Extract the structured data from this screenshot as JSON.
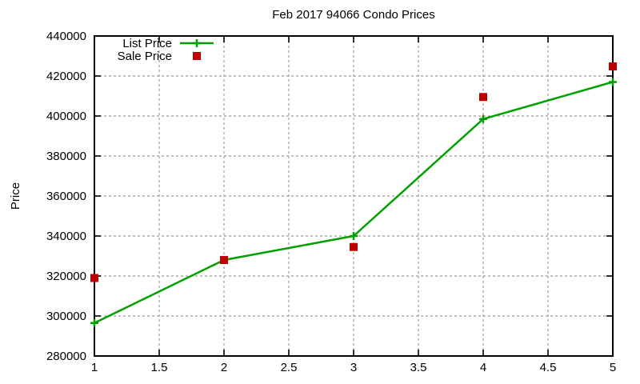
{
  "window": {
    "background": "#ffffff"
  },
  "chart_data": {
    "type": "line",
    "title": "Feb 2017 94066 Condo Prices",
    "xlabel": "",
    "ylabel": "Price",
    "x": [
      1,
      2,
      3,
      4,
      5
    ],
    "series": [
      {
        "name": "List Price",
        "style": "line-with-plus-markers",
        "color": "#00a000",
        "values": [
          296500,
          328000,
          340000,
          398500,
          417000
        ]
      },
      {
        "name": "Sale Price",
        "style": "filled-squares",
        "color": "#c00000",
        "values": [
          319000,
          328000,
          334500,
          409500,
          424800
        ]
      }
    ],
    "xlim": [
      1,
      5
    ],
    "ylim": [
      280000,
      440000
    ],
    "xticks": [
      1,
      1.5,
      2,
      2.5,
      3,
      3.5,
      4,
      4.5,
      5
    ],
    "xtick_labels": [
      "1",
      "1.5",
      "2",
      "2.5",
      "3",
      "3.5",
      "4",
      "4.5",
      "5"
    ],
    "yticks": [
      280000,
      300000,
      320000,
      340000,
      360000,
      380000,
      400000,
      420000,
      440000
    ],
    "ytick_labels": [
      "280000",
      "300000",
      "320000",
      "340000",
      "360000",
      "380000",
      "400000",
      "420000",
      "440000"
    ],
    "grid": true,
    "grid_style": "dashed",
    "grid_color": "#aaaaaa",
    "axis_color": "#000000",
    "ticks_mirrored": true,
    "legend_position": "top-left-inside",
    "legend_entries": [
      "List Price",
      "Sale Price"
    ]
  }
}
